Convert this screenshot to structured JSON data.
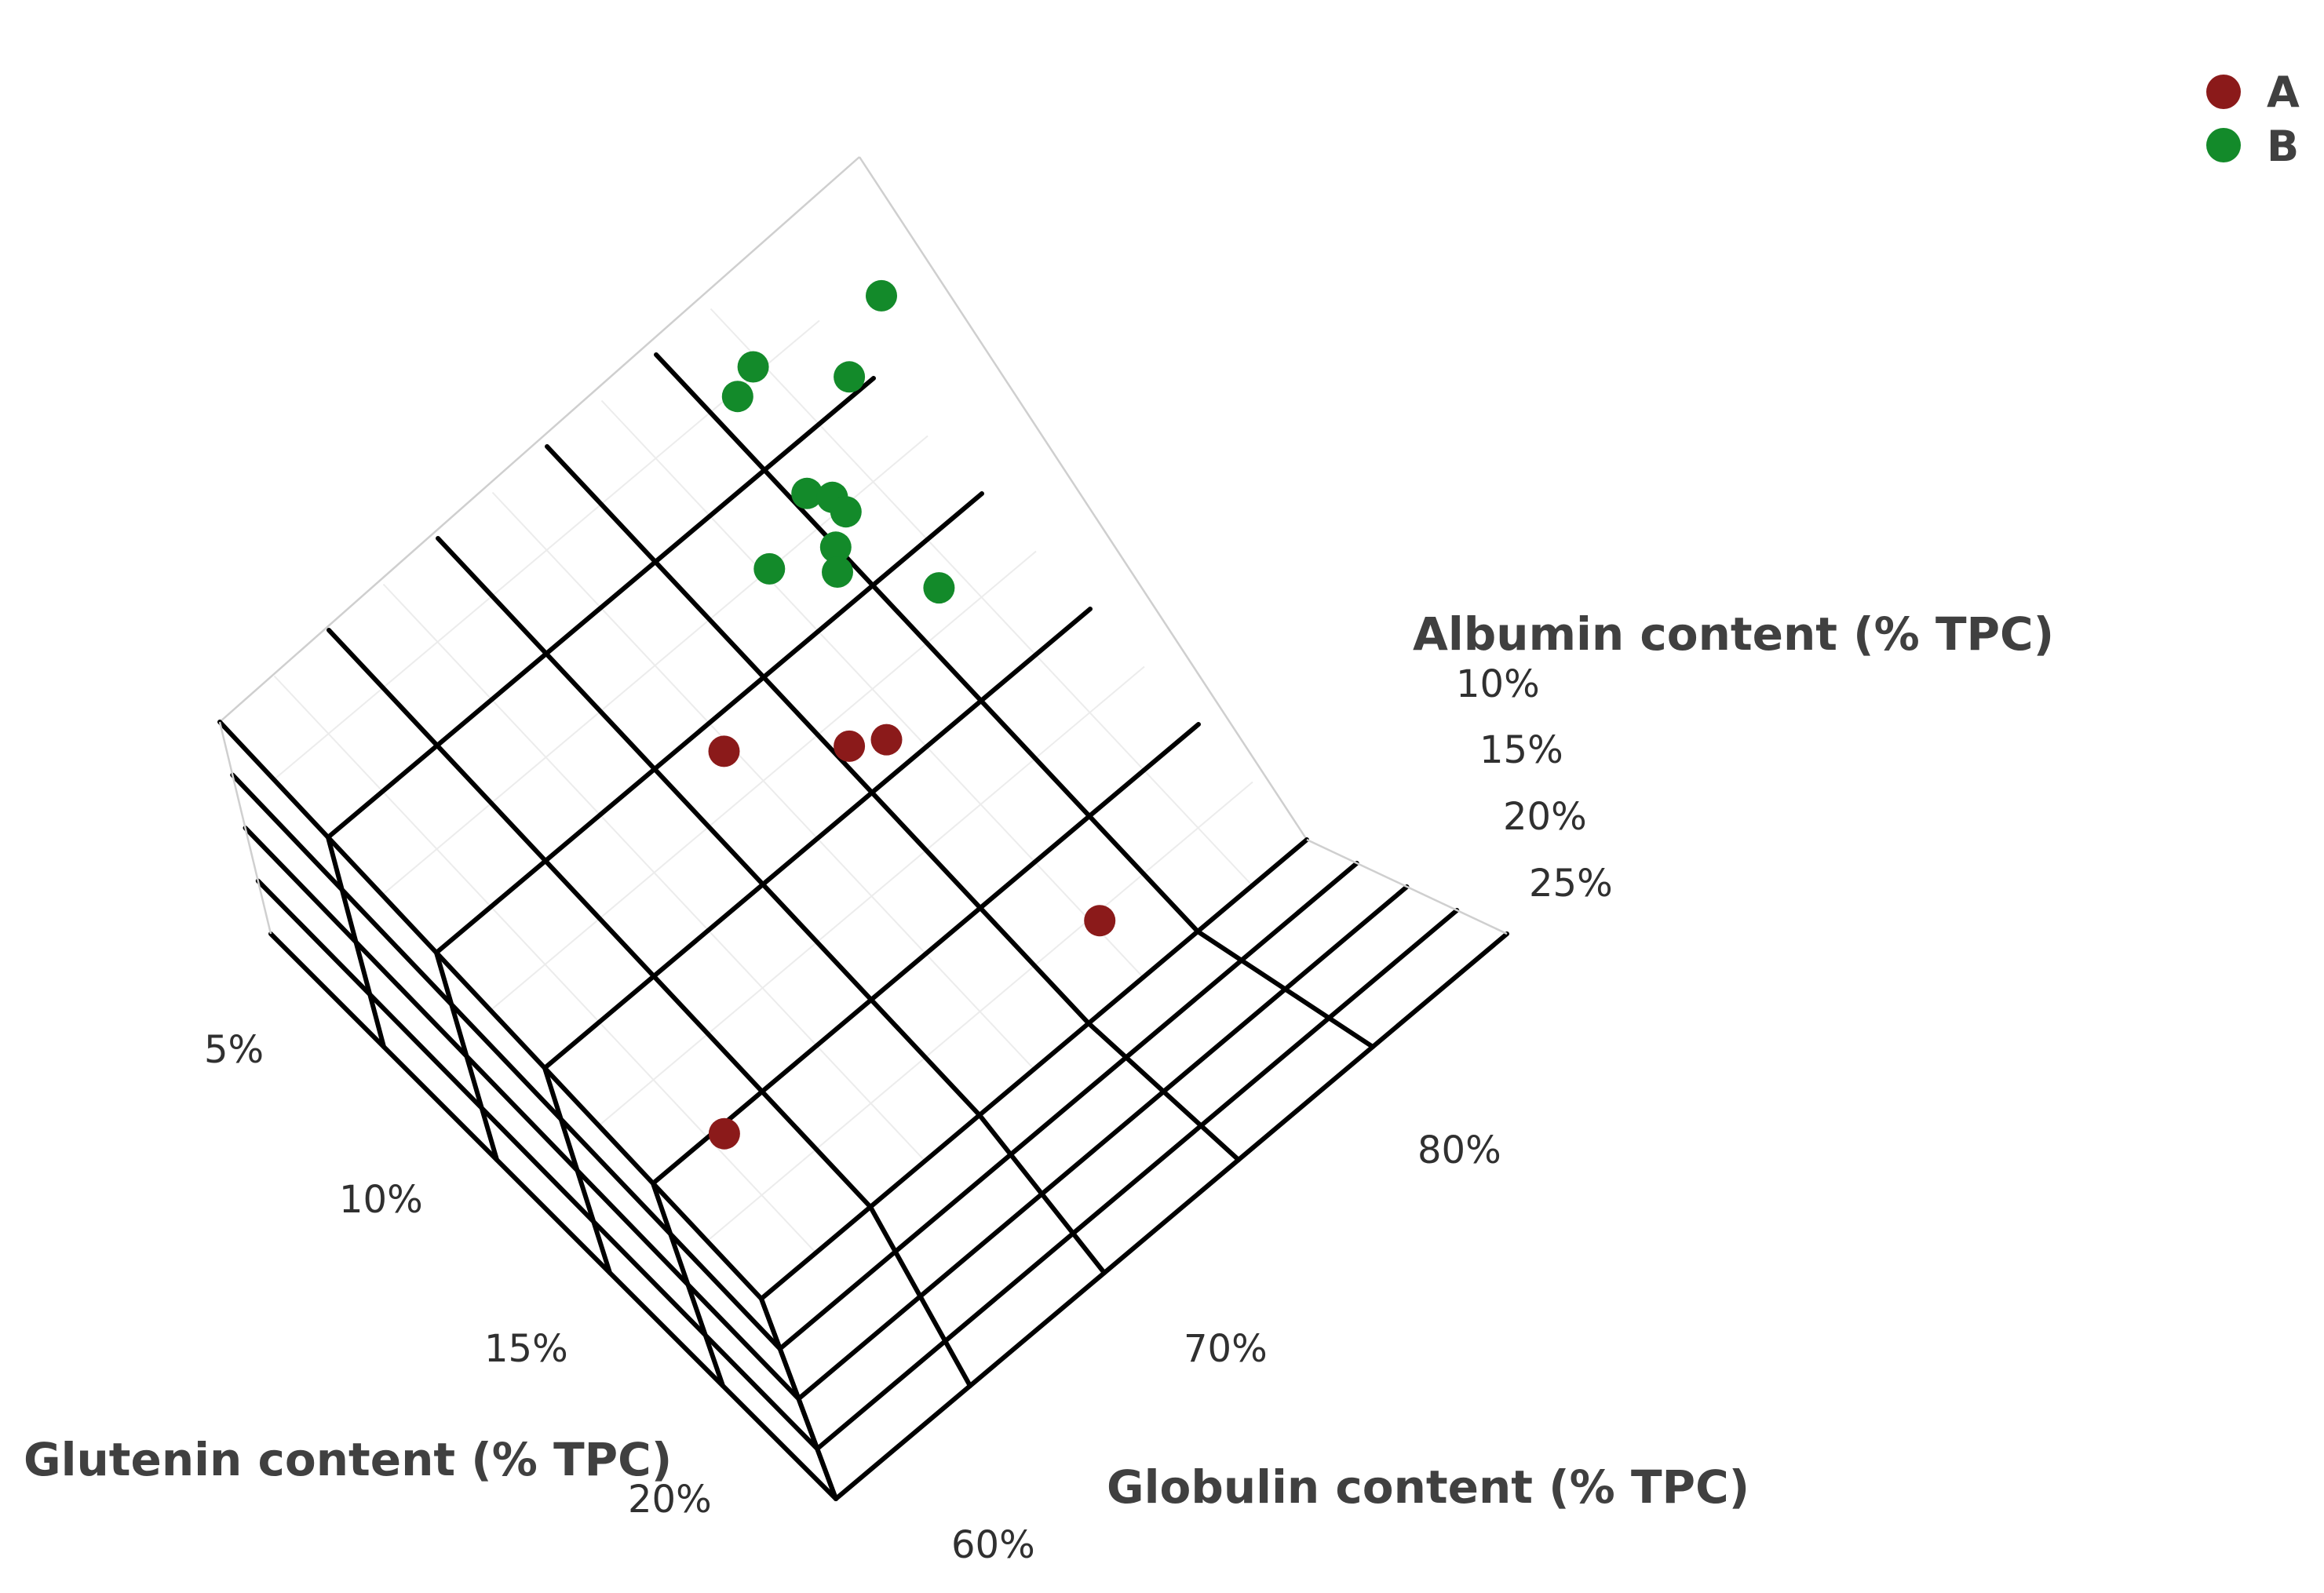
{
  "chart_data": {
    "type": "scatter3d",
    "title": "",
    "axes": {
      "albumin": {
        "label": "Albumin content (% TPC)",
        "ticks": [
          "10%",
          "15%",
          "20%",
          "25%"
        ]
      },
      "globulin": {
        "label": "Globulin content (% TPC)",
        "ticks": [
          "60%",
          "70%",
          "80%"
        ]
      },
      "glutenin": {
        "label": "Glutenin content (% TPC)",
        "ticks": [
          "5%",
          "10%",
          "15%",
          "20%"
        ]
      }
    },
    "legend": {
      "position": "top-right"
    },
    "series": [
      {
        "name": "A",
        "color": "#8b1a1a",
        "points": [
          {
            "globulin": 66,
            "glutenin": 9,
            "albumin": 10
          },
          {
            "globulin": 69,
            "glutenin": 11,
            "albumin": 10
          },
          {
            "globulin": 70,
            "glutenin": 11.5,
            "albumin": 10
          },
          {
            "globulin": 71,
            "glutenin": 18.5,
            "albumin": 10
          },
          {
            "globulin": 60,
            "glutenin": 16,
            "albumin": 27
          }
        ]
      },
      {
        "name": "B",
        "color": "#138a2a",
        "points": [
          {
            "globulin": 79.5,
            "glutenin": 3,
            "albumin": 10
          },
          {
            "globulin": 77,
            "glutenin": 4,
            "albumin": 10
          },
          {
            "globulin": 75,
            "glutenin": 2.2,
            "albumin": 10
          },
          {
            "globulin": 74,
            "glutenin": 2.5,
            "albumin": 10
          },
          {
            "globulin": 73.5,
            "glutenin": 5.5,
            "albumin": 10
          },
          {
            "globulin": 74,
            "glutenin": 6,
            "albumin": 10
          },
          {
            "globulin": 74,
            "glutenin": 6.5,
            "albumin": 10
          },
          {
            "globulin": 73,
            "glutenin": 7,
            "albumin": 10
          },
          {
            "globulin": 71,
            "glutenin": 6.3,
            "albumin": 10
          },
          {
            "globulin": 72.5,
            "glutenin": 7.5,
            "albumin": 10
          },
          {
            "globulin": 74.5,
            "glutenin": 9.5,
            "albumin": 10
          }
        ]
      }
    ]
  }
}
